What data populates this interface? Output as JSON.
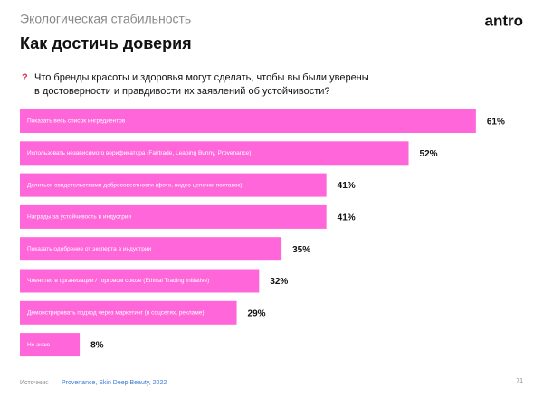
{
  "header": {
    "section": "Экологическая стабильность",
    "title": "Как достичь доверия",
    "logo": "antro"
  },
  "chart_data": {
    "type": "bar",
    "orientation": "horizontal",
    "question_mark": "?",
    "question": [
      "Что бренды красоты и здоровья могут сделать, чтобы вы были уверены",
      "в достоверности и правдивости их заявлений об устойчивости?"
    ],
    "categories": [
      "Показать весь список ингредиентов",
      "Использовать независимого верификатора (Fairtrade, Leaping Bunny, Provenance)",
      "Делиться  свидетельствами добросовестности (фото, видео цепочки поставок)",
      "Награды за устойчивость в индустрии",
      "Показать одобрение от эксперта в индустрии",
      "Членство в организации / торговом союзе (Ethical Trading Initiative)",
      "Демонстрировать подход через маркетинг (в соцсетях, рекламе)",
      "Не знаю"
    ],
    "values": [
      61,
      52,
      41,
      41,
      35,
      32,
      29,
      8
    ],
    "value_labels": [
      "61%",
      "52%",
      "41%",
      "41%",
      "35%",
      "32%",
      "29%",
      "8%"
    ],
    "color": "#ff66d9"
  },
  "footer": {
    "source_label": "Источник:",
    "source": "Provenance, Skin Deep Beauty, 2022",
    "page": "71"
  }
}
